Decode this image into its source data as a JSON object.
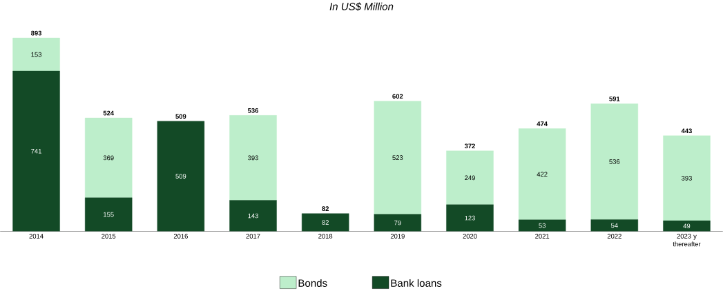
{
  "chart_data": {
    "type": "bar",
    "title": "In US$ Million",
    "stacked": true,
    "data_labels": true,
    "legend": "bottom",
    "categories": [
      "2014",
      "2015",
      "2016",
      "2017",
      "2018",
      "2019",
      "2020",
      "2021",
      "2022",
      "2023 y thereafter"
    ],
    "series": [
      {
        "name": "Bank loans",
        "color": "#134a26",
        "values": [
          741,
          155,
          509,
          143,
          82,
          79,
          123,
          53,
          54,
          49
        ]
      },
      {
        "name": "Bonds",
        "color": "#bdeecb",
        "values": [
          153,
          369,
          null,
          393,
          null,
          523,
          249,
          422,
          536,
          393
        ]
      }
    ],
    "totals": [
      "893",
      "524",
      "509",
      "536",
      "82",
      "602",
      "372",
      "474",
      "591",
      "443"
    ]
  }
}
